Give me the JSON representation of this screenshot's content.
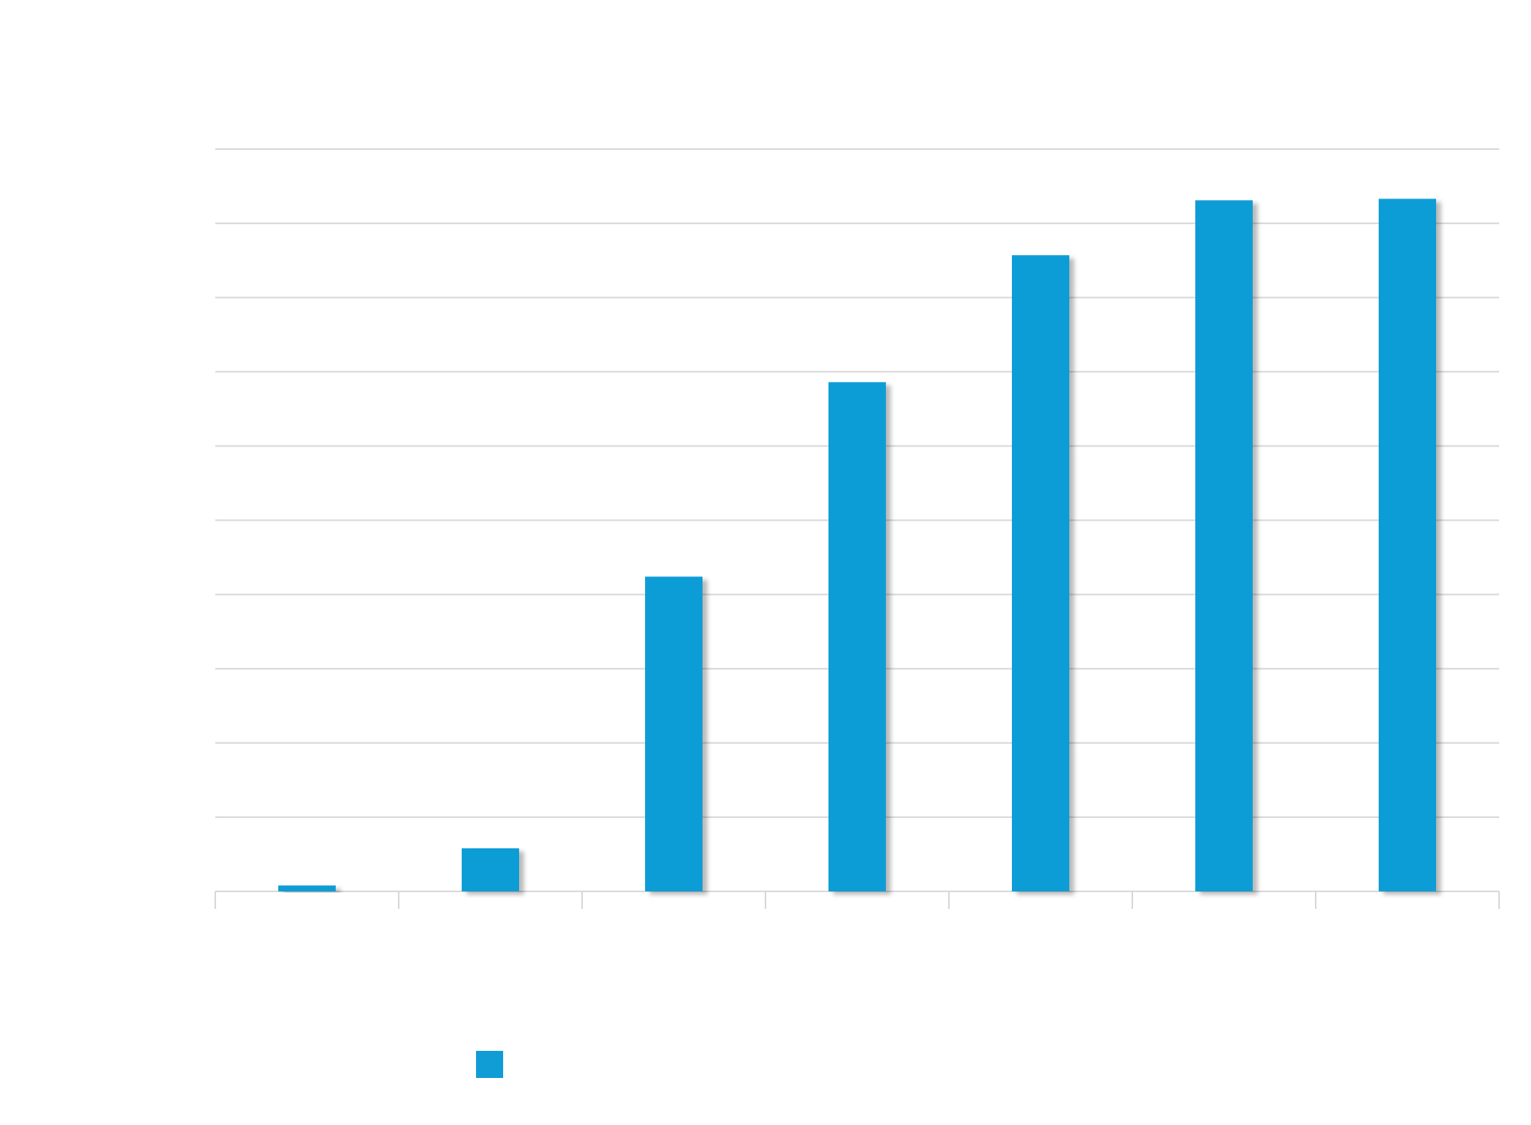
{
  "chart_data": {
    "type": "bar",
    "categories": [
      "",
      "",
      "",
      "",
      "",
      "",
      ""
    ],
    "series": [
      {
        "values": [
          0.08,
          0.58,
          4.24,
          6.86,
          8.57,
          9.31,
          9.33
        ],
        "color": "#109dd6"
      }
    ],
    "ylim": [
      0,
      10
    ],
    "ytick_count": 11,
    "grid": true,
    "legend_position": "bottom-left",
    "bar_shadow": true,
    "title": "",
    "xlabel": "",
    "ylabel": ""
  }
}
